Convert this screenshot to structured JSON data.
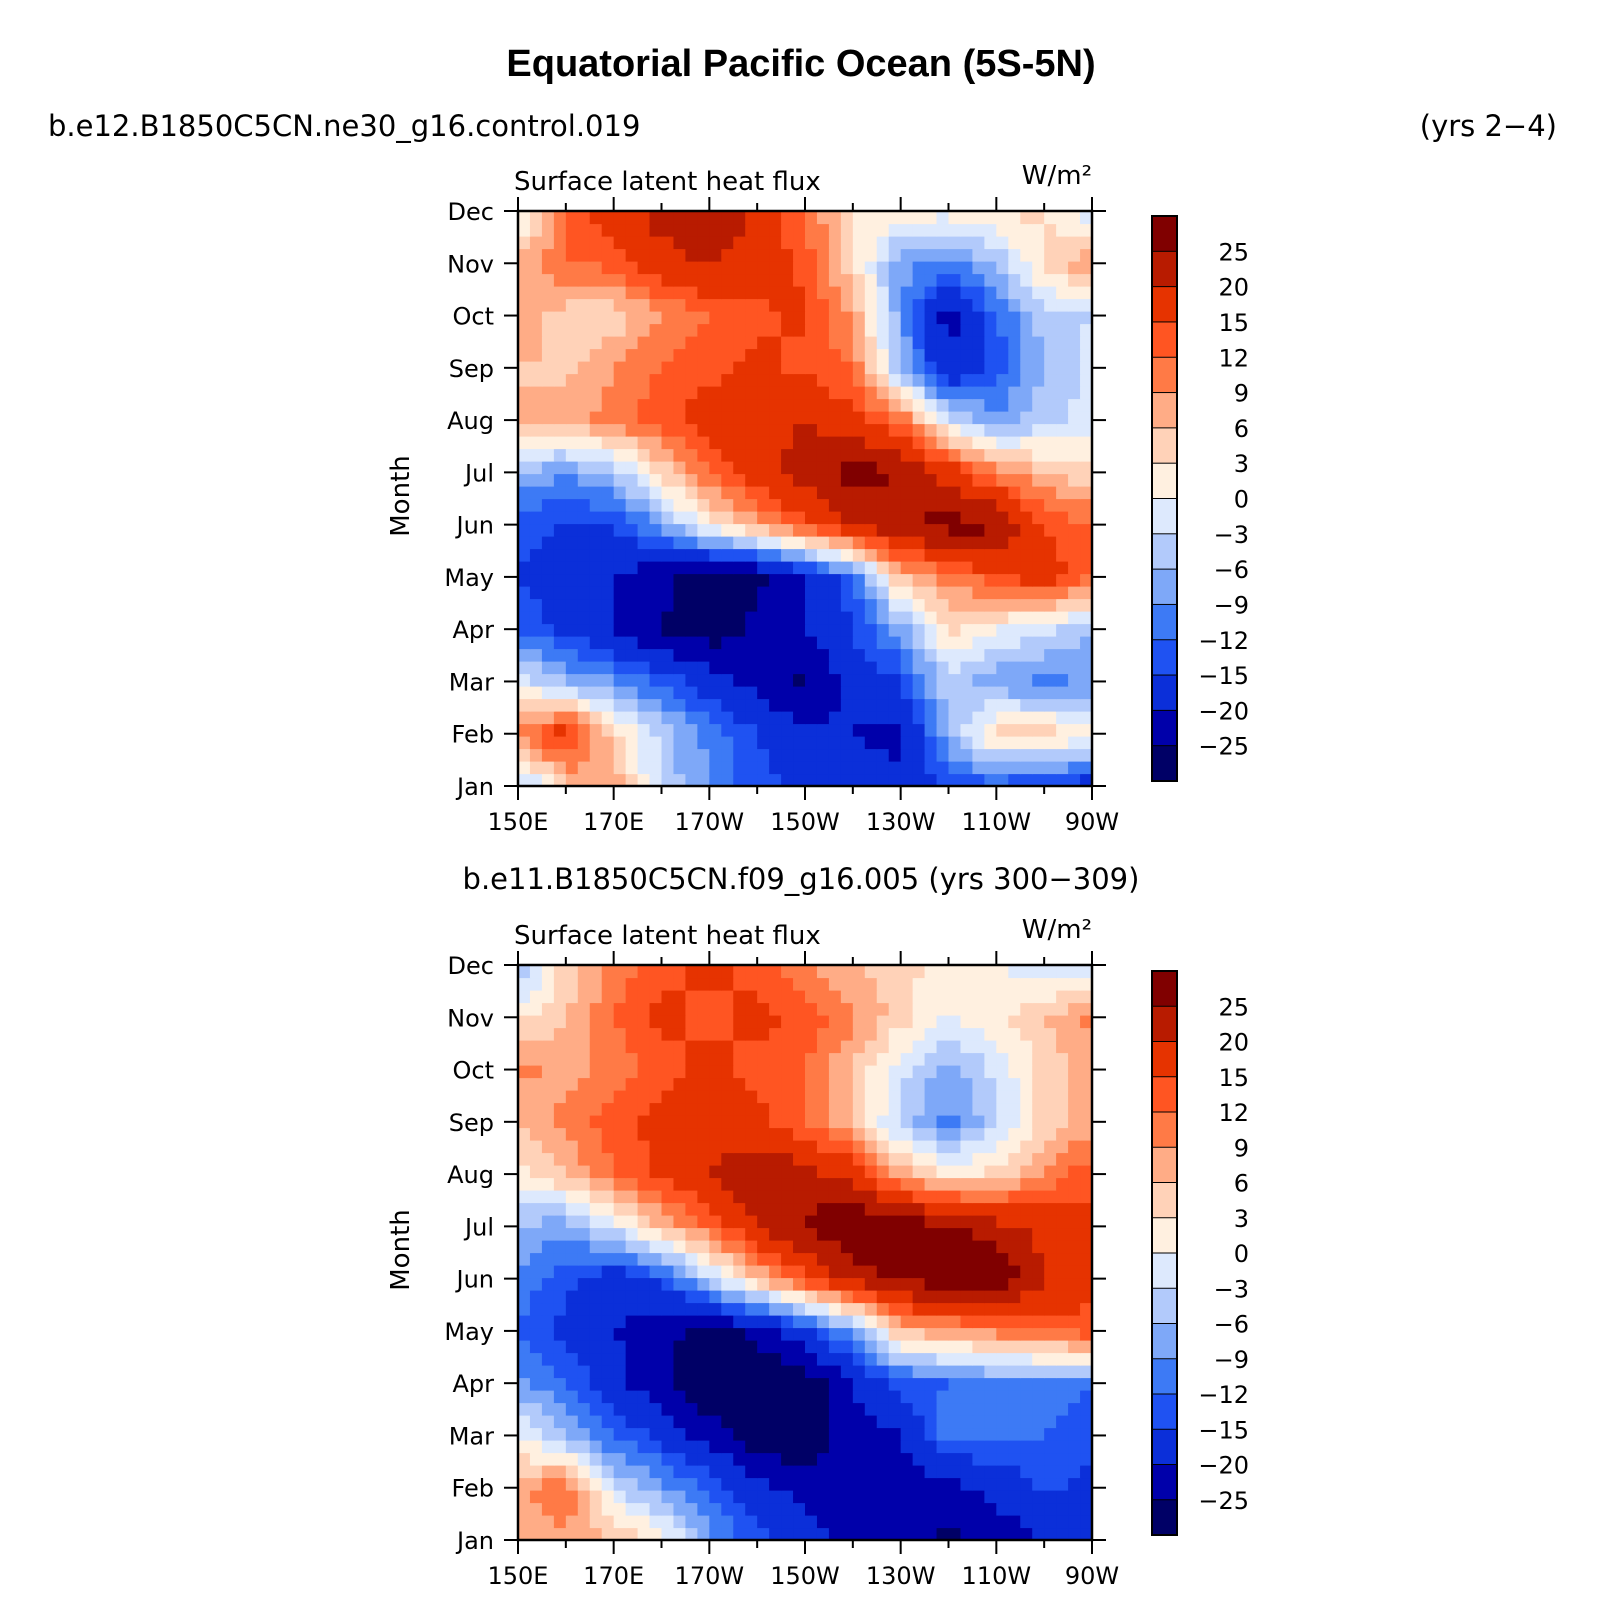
{
  "title": "Equatorial Pacific Ocean (5S-5N)",
  "colors": [
    "#000066",
    "#0000aa",
    "#0b2fd9",
    "#1f52f2",
    "#3d7af5",
    "#7ea8f8",
    "#b2cafb",
    "#dde9fd",
    "#fff0e0",
    "#ffd2b8",
    "#ffac86",
    "#ff7a46",
    "#ff5522",
    "#e63300",
    "#b81b00",
    "#800000"
  ],
  "colorbar_labels": [
    "25",
    "20",
    "15",
    "12",
    "9",
    "6",
    "3",
    "0",
    "−3",
    "−6",
    "−9",
    "−12",
    "−15",
    "−20",
    "−25"
  ],
  "chart_data": [
    {
      "type": "heatmap",
      "run_label": "b.e12.B1850C5CN.ne30_g16.control.019",
      "years_label": "(yrs 2−4)",
      "plot_title": "Surface latent heat flux",
      "units": "W/m²",
      "xlabel": "",
      "ylabel": "Month",
      "xticks": [
        "150E",
        "170E",
        "170W",
        "150W",
        "130W",
        "110W",
        "90W"
      ],
      "yticks": [
        "Jan",
        "Feb",
        "Mar",
        "Apr",
        "May",
        "Jun",
        "Jul",
        "Aug",
        "Sep",
        "Oct",
        "Nov",
        "Dec"
      ],
      "levels": [
        -25,
        -20,
        -15,
        -12,
        -9,
        -6,
        -3,
        0,
        3,
        6,
        9,
        12,
        15,
        20,
        25
      ],
      "lon": [
        150,
        160,
        170,
        180,
        190,
        200,
        210,
        220,
        230,
        240,
        250,
        260,
        270
      ],
      "month": [
        "Jan",
        "Feb",
        "Mar",
        "Apr",
        "May",
        "Jun",
        "Jul",
        "Aug",
        "Sep",
        "Oct",
        "Nov",
        "Dec"
      ],
      "values": [
        [
          -6,
          5,
          8,
          -4,
          -9,
          -14,
          -16,
          -18,
          -18,
          -14,
          -14,
          -15,
          -18
        ],
        [
          10,
          18,
          4,
          -4,
          -10,
          -15,
          -18,
          -20,
          -22,
          -6,
          4,
          5,
          2
        ],
        [
          -1,
          -6,
          -9,
          -13,
          -17,
          -22,
          -26,
          -18,
          -15,
          -4,
          -8,
          -10,
          -8
        ],
        [
          -12,
          -16,
          -20,
          -25,
          -28,
          -24,
          -20,
          -15,
          -8,
          4,
          0,
          -2,
          -6
        ],
        [
          -15,
          -18,
          -20,
          -24,
          -28,
          -26,
          -20,
          -12,
          6,
          10,
          14,
          18,
          12
        ],
        [
          -14,
          -15,
          -15,
          -8,
          2,
          8,
          14,
          20,
          24,
          27,
          26,
          15,
          12
        ],
        [
          -6,
          -9,
          -5,
          4,
          12,
          18,
          22,
          28,
          24,
          18,
          10,
          6,
          4
        ],
        [
          6,
          8,
          10,
          14,
          17,
          18,
          20,
          16,
          12,
          -2,
          -8,
          -4,
          -2
        ],
        [
          6,
          5,
          9,
          12,
          14,
          16,
          14,
          12,
          -6,
          -20,
          -14,
          -6,
          -2
        ],
        [
          9,
          4,
          4,
          9,
          12,
          14,
          16,
          8,
          -8,
          -22,
          -12,
          -4,
          -3
        ],
        [
          7,
          12,
          13,
          18,
          20,
          18,
          14,
          4,
          -8,
          -10,
          -6,
          4,
          9
        ],
        [
          -3,
          13,
          18,
          22,
          26,
          18,
          12,
          3,
          2,
          1,
          4,
          3,
          -3
        ]
      ]
    },
    {
      "type": "heatmap",
      "run_label": "b.e11.B1850C5CN.f09_g16.005 (yrs 300−309)",
      "plot_title": "Surface latent heat flux",
      "units": "W/m²",
      "xlabel": "",
      "ylabel": "Month",
      "xticks": [
        "150E",
        "170E",
        "170W",
        "150W",
        "130W",
        "110W",
        "90W"
      ],
      "yticks": [
        "Jan",
        "Feb",
        "Mar",
        "Apr",
        "May",
        "Jun",
        "Jul",
        "Aug",
        "Sep",
        "Oct",
        "Nov",
        "Dec"
      ],
      "levels": [
        -25,
        -20,
        -15,
        -12,
        -9,
        -6,
        -3,
        0,
        3,
        6,
        9,
        12,
        15,
        20,
        25
      ],
      "lon": [
        150,
        160,
        170,
        180,
        190,
        200,
        210,
        220,
        230,
        240,
        250,
        260,
        270
      ],
      "month": [
        "Jan",
        "Feb",
        "Mar",
        "Apr",
        "May",
        "Jun",
        "Jul",
        "Aug",
        "Sep",
        "Oct",
        "Nov",
        "Dec"
      ],
      "values": [
        [
          6,
          8,
          6,
          2,
          -8,
          -14,
          -18,
          -22,
          -24,
          -26,
          -24,
          -20,
          -18
        ],
        [
          8,
          12,
          -3,
          -8,
          -12,
          -18,
          -22,
          -22,
          -24,
          -22,
          -18,
          -14,
          -16
        ],
        [
          0,
          -6,
          -12,
          -16,
          -22,
          -28,
          -30,
          -22,
          -20,
          -10,
          -12,
          -12,
          -14
        ],
        [
          -8,
          -12,
          -18,
          -24,
          -30,
          -30,
          -28,
          -20,
          -14,
          -12,
          -10,
          -10,
          -12
        ],
        [
          -12,
          -16,
          -20,
          -24,
          -26,
          -24,
          -16,
          -8,
          6,
          8,
          10,
          12,
          14
        ],
        [
          -10,
          -14,
          -18,
          -14,
          -4,
          6,
          14,
          22,
          26,
          28,
          30,
          20,
          16
        ],
        [
          -6,
          -8,
          -2,
          6,
          12,
          20,
          26,
          30,
          28,
          26,
          22,
          18,
          16
        ],
        [
          2,
          6,
          12,
          16,
          20,
          24,
          22,
          18,
          8,
          2,
          4,
          10,
          14
        ],
        [
          6,
          10,
          14,
          16,
          18,
          16,
          12,
          6,
          -4,
          -10,
          -4,
          4,
          8
        ],
        [
          10,
          8,
          10,
          14,
          16,
          14,
          12,
          6,
          -2,
          -8,
          -2,
          4,
          8
        ],
        [
          2,
          6,
          12,
          16,
          14,
          16,
          14,
          10,
          4,
          0,
          2,
          6,
          10
        ],
        [
          -6,
          4,
          10,
          14,
          16,
          14,
          10,
          6,
          4,
          2,
          0,
          -2,
          -4
        ]
      ]
    }
  ]
}
